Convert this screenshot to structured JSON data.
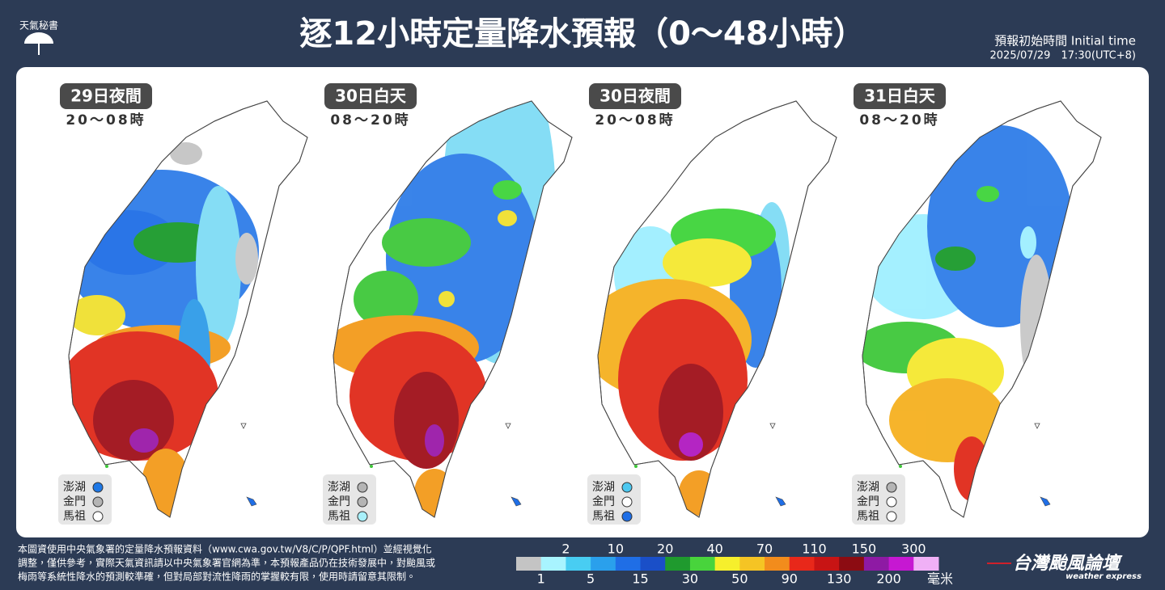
{
  "header": {
    "logo_text": "天氣秘書",
    "title": "逐12小時定量降水預報（0～48小時）",
    "init_label": "預報初始時間 Initial time",
    "init_time": "2025/07/29　17:30(UTC+8)"
  },
  "panels": [
    {
      "label": "29日夜間",
      "hours": "20～08時",
      "islands": [
        {
          "name": "澎湖",
          "color": "#1e78e6"
        },
        {
          "name": "金門",
          "color": "#b4b4b4"
        },
        {
          "name": "馬祖",
          "color": "#ffffff"
        }
      ]
    },
    {
      "label": "30日白天",
      "hours": "08～20時",
      "islands": [
        {
          "name": "澎湖",
          "color": "#b4b4b4"
        },
        {
          "name": "金門",
          "color": "#b4b4b4"
        },
        {
          "name": "馬祖",
          "color": "#a8f0fa"
        }
      ]
    },
    {
      "label": "30日夜間",
      "hours": "20～08時",
      "islands": [
        {
          "name": "澎湖",
          "color": "#4cc8f0"
        },
        {
          "name": "金門",
          "color": "#ffffff"
        },
        {
          "name": "馬祖",
          "color": "#1e6ee6"
        }
      ]
    },
    {
      "label": "31日白天",
      "hours": "08～20時",
      "islands": [
        {
          "name": "澎湖",
          "color": "#b4b4b4"
        },
        {
          "name": "金門",
          "color": "#ffffff"
        },
        {
          "name": "馬祖",
          "color": "#ffffff"
        }
      ]
    }
  ],
  "footer": {
    "note_lines": [
      "本圖資使用中央氣象署的定量降水預報資料（www.cwa.gov.tw/V8/C/P/QPF.html）並經視覺化",
      "調整，僅供參考，實際天氣資訊請以中央氣象署官網為準，本預報產品仍在技術發展中，對颱風或",
      "梅雨等系統性降水的預測較準確，但對局部對流性降雨的掌握較有限，使用時請留意其限制。"
    ],
    "legend": {
      "thresholds": [
        1,
        2,
        5,
        10,
        15,
        20,
        30,
        40,
        50,
        70,
        90,
        110,
        130,
        150,
        200,
        300
      ],
      "colors": [
        "#c4c4c4",
        "#a8f4ff",
        "#48cdf2",
        "#2aa0ec",
        "#1f6ee6",
        "#1a4fc8",
        "#1f9a2e",
        "#48d43c",
        "#f6ef2c",
        "#f5c424",
        "#f28c1c",
        "#e8281a",
        "#c81414",
        "#8c0c12",
        "#8e1aa4",
        "#c618d2",
        "#f0b0f6"
      ],
      "unit": "毫米"
    },
    "brand": "台灣颱風論壇",
    "brand_sub": "weather express"
  }
}
